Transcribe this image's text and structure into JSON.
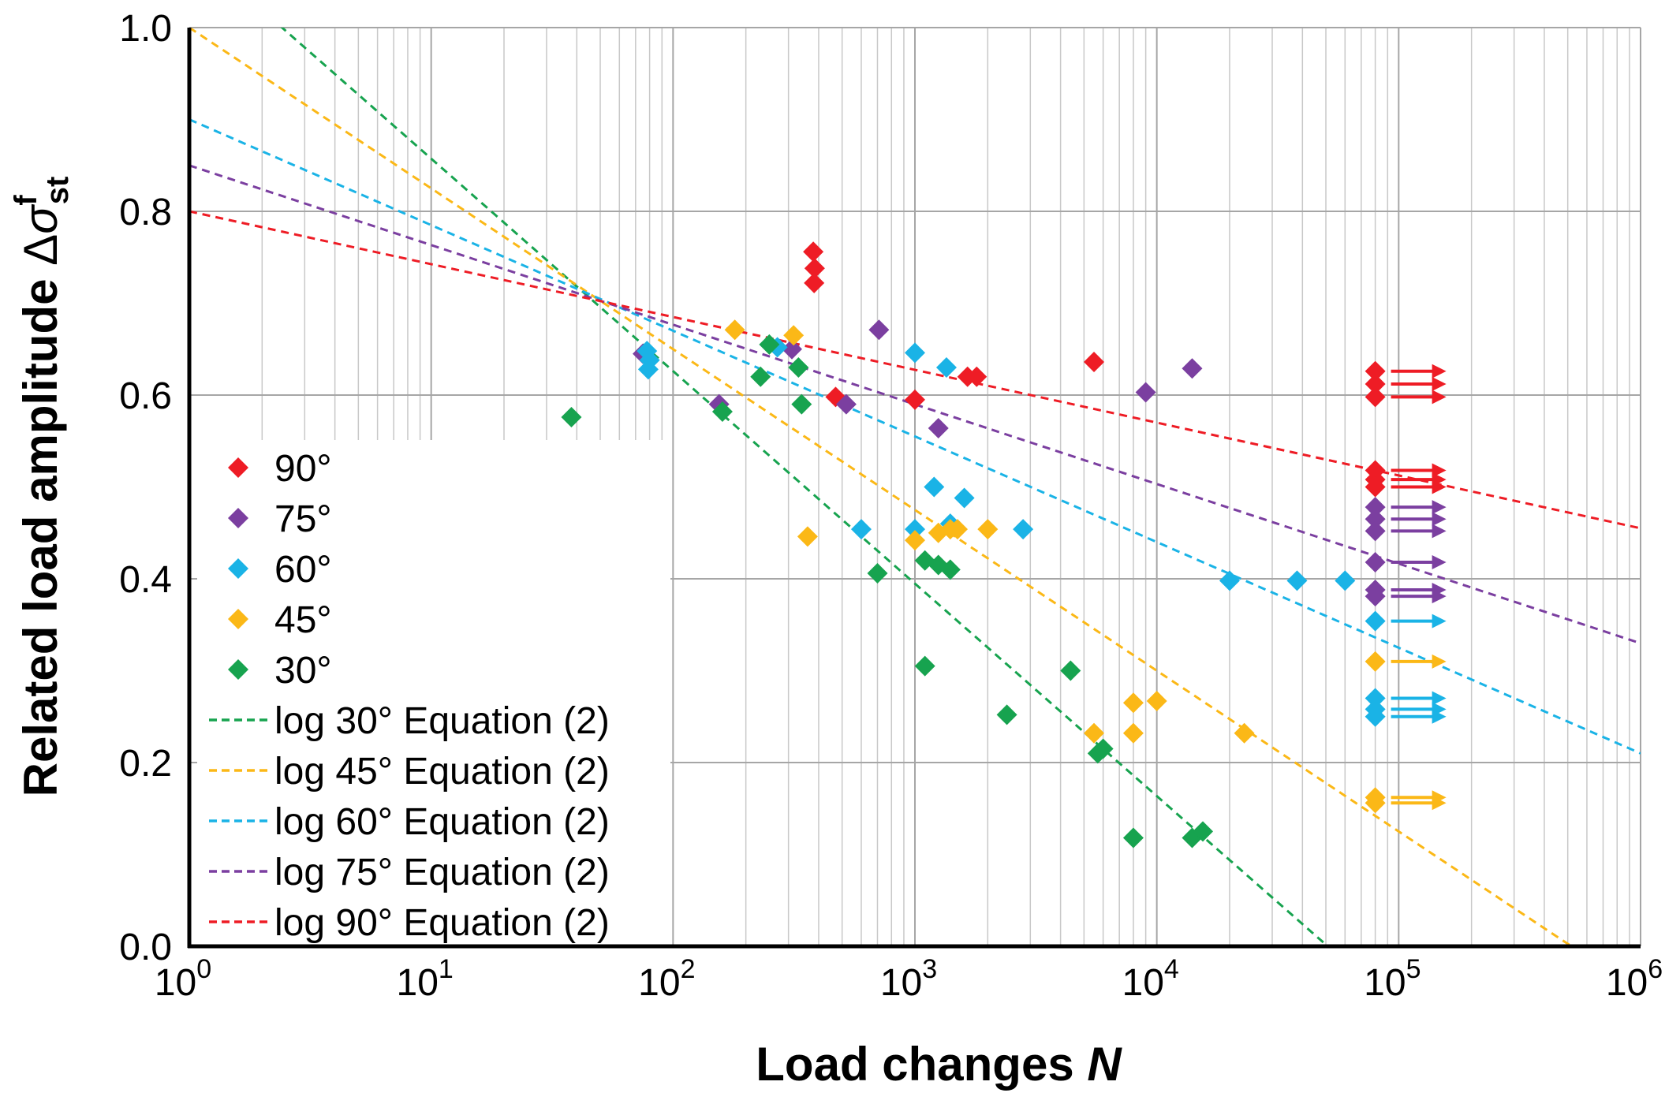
{
  "chart_data": {
    "type": "scatter",
    "title": "",
    "xlabel": {
      "prefix": "Load changes ",
      "italic": "N"
    },
    "ylabel": {
      "prefix": "Related load amplitude ",
      "delta": "Δ",
      "sigma": "σ",
      "sup": "f",
      "sub": "st"
    },
    "xscale": "log",
    "xlim": [
      1,
      1000000
    ],
    "ylim": [
      0,
      1.0
    ],
    "grid": true,
    "legend_position": "left",
    "x_ticks": [
      {
        "base": "10",
        "exp": "0"
      },
      {
        "base": "10",
        "exp": "1"
      },
      {
        "base": "10",
        "exp": "2"
      },
      {
        "base": "10",
        "exp": "3"
      },
      {
        "base": "10",
        "exp": "4"
      },
      {
        "base": "10",
        "exp": "5"
      },
      {
        "base": "10",
        "exp": "6"
      }
    ],
    "y_ticks": [
      "0.0",
      "0.2",
      "0.4",
      "0.6",
      "0.8",
      "1.0"
    ],
    "series": [
      {
        "name": "90°",
        "color": "#ee1c25",
        "points": [
          [
            380,
            0.756
          ],
          [
            385,
            0.738
          ],
          [
            383,
            0.722
          ],
          [
            470,
            0.598
          ],
          [
            1000,
            0.595
          ],
          [
            1650,
            0.62
          ],
          [
            1800,
            0.62
          ],
          [
            5500,
            0.636
          ]
        ],
        "runouts": [
          [
            80000,
            0.626
          ],
          [
            80000,
            0.612
          ],
          [
            80000,
            0.598
          ],
          [
            80000,
            0.518
          ],
          [
            80000,
            0.508
          ],
          [
            80000,
            0.5
          ]
        ]
      },
      {
        "name": "75°",
        "color": "#7b3fa0",
        "points": [
          [
            75,
            0.645
          ],
          [
            310,
            0.65
          ],
          [
            710,
            0.671
          ],
          [
            520,
            0.59
          ],
          [
            155,
            0.59
          ],
          [
            1250,
            0.564
          ],
          [
            9000,
            0.603
          ],
          [
            14000,
            0.629
          ]
        ],
        "runouts": [
          [
            80000,
            0.478
          ],
          [
            80000,
            0.465
          ],
          [
            80000,
            0.452
          ],
          [
            80000,
            0.418
          ],
          [
            80000,
            0.388
          ],
          [
            80000,
            0.381
          ]
        ]
      },
      {
        "name": "60°",
        "color": "#1ab3e6",
        "points": [
          [
            78,
            0.648
          ],
          [
            80,
            0.638
          ],
          [
            79,
            0.628
          ],
          [
            270,
            0.652
          ],
          [
            1000,
            0.646
          ],
          [
            1350,
            0.63
          ],
          [
            600,
            0.454
          ],
          [
            1000,
            0.454
          ],
          [
            1200,
            0.5
          ],
          [
            1400,
            0.46
          ],
          [
            1600,
            0.488
          ],
          [
            2800,
            0.454
          ],
          [
            20000,
            0.398
          ],
          [
            38000,
            0.398
          ],
          [
            60000,
            0.398
          ]
        ],
        "runouts": [
          [
            80000,
            0.354
          ],
          [
            80000,
            0.27
          ],
          [
            80000,
            0.258
          ],
          [
            80000,
            0.25
          ]
        ]
      },
      {
        "name": "45°",
        "color": "#fbb817",
        "points": [
          [
            180,
            0.671
          ],
          [
            315,
            0.665
          ],
          [
            360,
            0.446
          ],
          [
            1000,
            0.442
          ],
          [
            1250,
            0.45
          ],
          [
            1400,
            0.454
          ],
          [
            1500,
            0.454
          ],
          [
            2000,
            0.454
          ],
          [
            5500,
            0.232
          ],
          [
            8000,
            0.232
          ],
          [
            8000,
            0.265
          ],
          [
            10000,
            0.267
          ],
          [
            23000,
            0.232
          ]
        ],
        "runouts": [
          [
            80000,
            0.31
          ],
          [
            80000,
            0.162
          ],
          [
            80000,
            0.156
          ]
        ]
      },
      {
        "name": "30°",
        "color": "#17a34f",
        "points": [
          [
            38,
            0.576
          ],
          [
            160,
            0.582
          ],
          [
            230,
            0.62
          ],
          [
            250,
            0.655
          ],
          [
            330,
            0.63
          ],
          [
            340,
            0.59
          ],
          [
            700,
            0.406
          ],
          [
            1100,
            0.42
          ],
          [
            1100,
            0.305
          ],
          [
            1250,
            0.415
          ],
          [
            1400,
            0.41
          ],
          [
            2400,
            0.252
          ],
          [
            4400,
            0.3
          ],
          [
            5700,
            0.21
          ],
          [
            6000,
            0.215
          ],
          [
            8000,
            0.118
          ],
          [
            14000,
            0.118
          ],
          [
            15500,
            0.125
          ]
        ],
        "runouts": []
      }
    ],
    "fit_lines": [
      {
        "name": "log 30° Equation (2)",
        "color": "#17a34f",
        "intercept": 1.0887,
        "slope": -0.2313
      },
      {
        "name": "log 45° Equation (2)",
        "color": "#fbb817",
        "intercept": 1.0,
        "slope": -0.175
      },
      {
        "name": "log 60° Equation (2)",
        "color": "#1ab3e6",
        "intercept": 0.9,
        "slope": -0.115
      },
      {
        "name": "log 75° Equation (2)",
        "color": "#7b3fa0",
        "intercept": 0.85,
        "slope": -0.0867
      },
      {
        "name": "log 90° Equation (2)",
        "color": "#ee1c25",
        "intercept": 0.8,
        "slope": -0.0575
      }
    ]
  }
}
